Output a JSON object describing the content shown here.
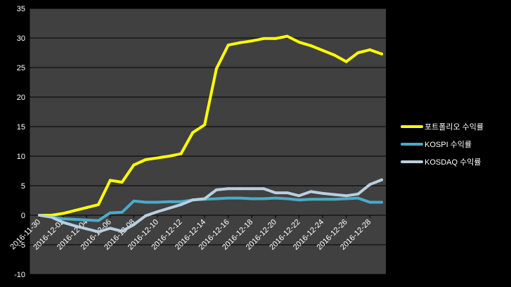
{
  "chart_data": {
    "type": "line",
    "x": [
      "2016-11-30",
      "2016-12-01",
      "2016-12-02",
      "2016-12-03",
      "2016-12-04",
      "2016-12-05",
      "2016-12-06",
      "2016-12-07",
      "2016-12-08",
      "2016-12-09",
      "2016-12-10",
      "2016-12-11",
      "2016-12-12",
      "2016-12-13",
      "2016-12-14",
      "2016-12-15",
      "2016-12-16",
      "2016-12-17",
      "2016-12-18",
      "2016-12-19",
      "2016-12-20",
      "2016-12-21",
      "2016-12-22",
      "2016-12-23",
      "2016-12-24",
      "2016-12-25",
      "2016-12-26",
      "2016-12-27",
      "2016-12-28",
      "2016-12-29"
    ],
    "xtick_labels": [
      "2016-11-30",
      "2016-12-02",
      "2016-12-04",
      "2016-12-06",
      "2016-12-08",
      "2016-12-10",
      "2016-12-12",
      "2016-12-14",
      "2016-12-16",
      "2016-12-18",
      "2016-12-20",
      "2016-12-22",
      "2016-12-24",
      "2016-12-26",
      "2016-12-28"
    ],
    "ylim": [
      -10,
      35
    ],
    "yticks": [
      -10,
      -5,
      0,
      5,
      10,
      15,
      20,
      25,
      30,
      35
    ],
    "grid": "horizontal",
    "legend_position": "right",
    "series": [
      {
        "name": "포트폴리오 수익률",
        "color": "#ffff00",
        "values": [
          0,
          0,
          0.3,
          0.8,
          1.3,
          1.8,
          5.9,
          5.6,
          8.5,
          9.4,
          9.7,
          10.0,
          10.4,
          14.0,
          15.3,
          24.8,
          28.8,
          29.2,
          29.5,
          29.9,
          29.9,
          30.3,
          29.3,
          28.7,
          27.9,
          27.1,
          26.0,
          27.5,
          28.0,
          27.3
        ]
      },
      {
        "name": "KOSPI 수익률",
        "color": "#4aabc8",
        "values": [
          0,
          -0.3,
          -0.6,
          -0.7,
          -0.8,
          -0.9,
          0.4,
          0.5,
          2.4,
          2.2,
          2.2,
          2.3,
          2.3,
          2.6,
          2.7,
          2.8,
          2.9,
          2.9,
          2.8,
          2.8,
          2.9,
          2.8,
          2.6,
          2.7,
          2.7,
          2.7,
          2.8,
          2.9,
          2.2,
          2.2
        ]
      },
      {
        "name": "KOSDAQ 수익률",
        "color": "#b9cfe0",
        "values": [
          0,
          -0.3,
          -1.2,
          -1.8,
          -2.3,
          -2.8,
          -2.2,
          -2.7,
          -1.6,
          -0.1,
          0.6,
          1.2,
          1.8,
          2.6,
          2.8,
          4.3,
          4.5,
          4.5,
          4.5,
          4.5,
          3.8,
          3.8,
          3.3,
          4.0,
          3.7,
          3.5,
          3.3,
          3.6,
          5.2,
          6.0
        ]
      }
    ]
  }
}
